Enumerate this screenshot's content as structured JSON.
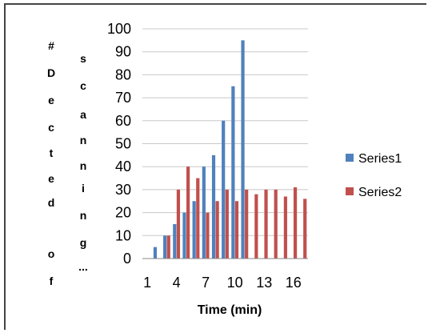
{
  "chart_data": {
    "type": "bar",
    "x": [
      1,
      2,
      3,
      4,
      5,
      6,
      7,
      8,
      9,
      10,
      11,
      12,
      13,
      14,
      15,
      16,
      17
    ],
    "xticks": [
      "1",
      "4",
      "7",
      "10",
      "13",
      "16"
    ],
    "series": [
      {
        "name": "Series1",
        "color": "#4F81BD",
        "values": [
          0,
          5,
          10,
          15,
          20,
          25,
          40,
          45,
          60,
          75,
          95,
          0,
          0,
          0,
          0,
          0,
          0
        ]
      },
      {
        "name": "Series2",
        "color": "#C0504D",
        "values": [
          0,
          0,
          10,
          30,
          40,
          35,
          20,
          25,
          30,
          25,
          30,
          28,
          30,
          30,
          27,
          31,
          26
        ]
      }
    ],
    "ylim": [
      0,
      100
    ],
    "yticks": [
      0,
      10,
      20,
      30,
      40,
      50,
      60,
      70,
      80,
      90,
      100
    ],
    "xlabel": "Time (min)",
    "ylabel_col1": [
      "#",
      "D",
      "e",
      "c",
      "t",
      "e",
      "d",
      "",
      "o",
      "f"
    ],
    "ylabel_col2": [
      "s",
      "c",
      "a",
      "n",
      "n",
      "i",
      "n",
      "g",
      "..."
    ],
    "legend_position": "right",
    "grid": true
  }
}
